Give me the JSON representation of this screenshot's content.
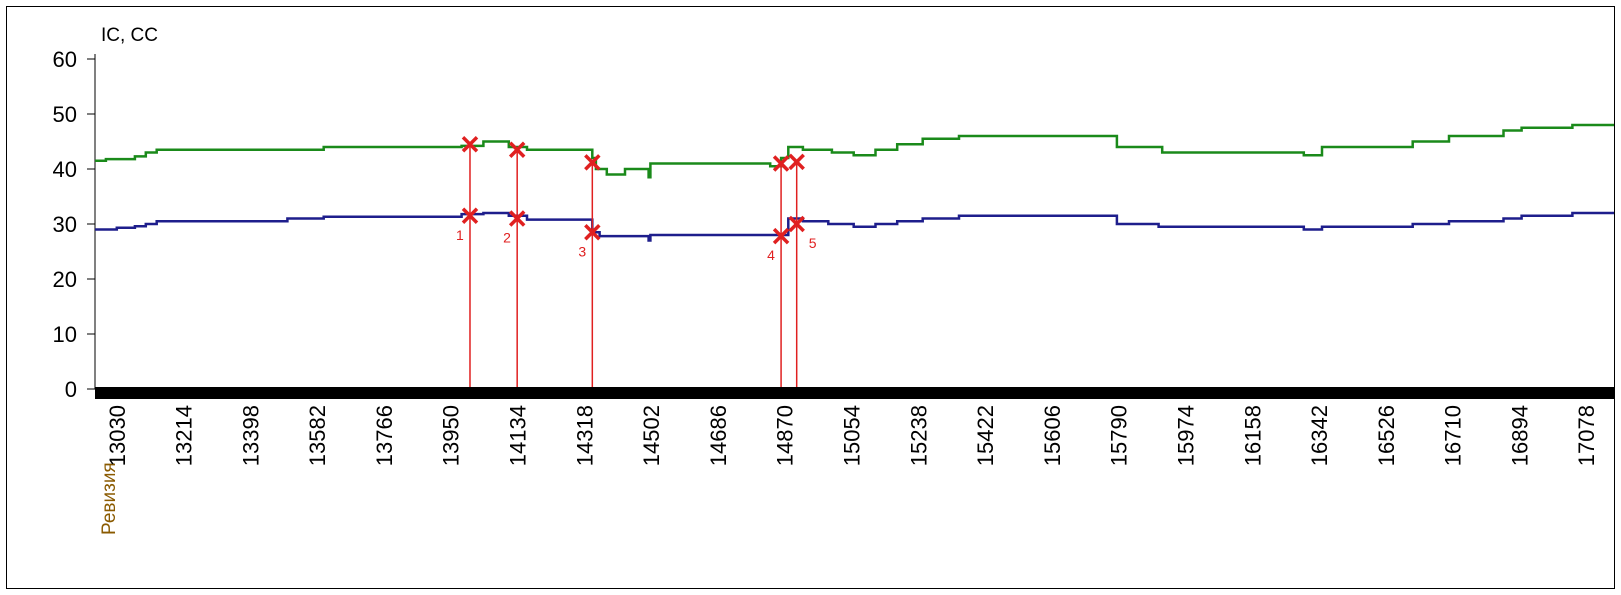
{
  "chart_data": {
    "type": "line",
    "ylabel": "IC, CC",
    "xlabel": "Ревизия",
    "ylim": [
      0,
      60
    ],
    "yticks": [
      "60",
      "50",
      "40",
      "30",
      "20",
      "10",
      "0"
    ],
    "xlim": [
      12970,
      17160
    ],
    "xticks": [
      "13030",
      "13214",
      "13398",
      "13582",
      "13766",
      "13950",
      "14134",
      "14318",
      "14502",
      "14686",
      "14870",
      "15054",
      "15238",
      "15422",
      "15606",
      "15790",
      "15974",
      "16158",
      "16342",
      "16526",
      "16710",
      "16894",
      "17078"
    ],
    "grid": false,
    "legend": "none",
    "colors": {
      "green": "#1a8a1a",
      "blue": "#1e1e8c",
      "marker": "#e02020"
    },
    "series": [
      {
        "color": "#1a8a1a",
        "points": [
          [
            12970,
            41.5
          ],
          [
            13000,
            41.8
          ],
          [
            13030,
            41.8
          ],
          [
            13080,
            42.3
          ],
          [
            13110,
            43.0
          ],
          [
            13140,
            43.5
          ],
          [
            13400,
            43.5
          ],
          [
            13600,
            44.0
          ],
          [
            13980,
            44.2
          ],
          [
            14040,
            45.0
          ],
          [
            14110,
            44.0
          ],
          [
            14160,
            43.5
          ],
          [
            14300,
            43.5
          ],
          [
            14340,
            42.0
          ],
          [
            14350,
            40.0
          ],
          [
            14380,
            39.0
          ],
          [
            14430,
            40.0
          ],
          [
            14490,
            40.0
          ],
          [
            14495,
            38.5
          ],
          [
            14500,
            41.0
          ],
          [
            14600,
            41.0
          ],
          [
            14700,
            41.0
          ],
          [
            14830,
            40.5
          ],
          [
            14860,
            42.0
          ],
          [
            14880,
            44.0
          ],
          [
            14920,
            43.5
          ],
          [
            14990,
            43.5
          ],
          [
            15000,
            43.0
          ],
          [
            15040,
            43.0
          ],
          [
            15060,
            42.5
          ],
          [
            15120,
            43.5
          ],
          [
            15180,
            44.5
          ],
          [
            15250,
            45.5
          ],
          [
            15350,
            46.0
          ],
          [
            15780,
            46.0
          ],
          [
            15785,
            44.0
          ],
          [
            15900,
            44.0
          ],
          [
            15910,
            43.0
          ],
          [
            16300,
            42.5
          ],
          [
            16350,
            44.0
          ],
          [
            16600,
            45.0
          ],
          [
            16700,
            46.0
          ],
          [
            16850,
            47.0
          ],
          [
            16900,
            47.5
          ],
          [
            17040,
            48.0
          ],
          [
            17160,
            48.0
          ]
        ]
      },
      {
        "color": "#1e1e8c",
        "points": [
          [
            12970,
            29.0
          ],
          [
            13030,
            29.3
          ],
          [
            13080,
            29.6
          ],
          [
            13110,
            30.0
          ],
          [
            13140,
            30.5
          ],
          [
            13400,
            30.5
          ],
          [
            13500,
            31.0
          ],
          [
            13600,
            31.3
          ],
          [
            13980,
            31.8
          ],
          [
            14040,
            32.0
          ],
          [
            14110,
            31.5
          ],
          [
            14160,
            30.8
          ],
          [
            14320,
            30.8
          ],
          [
            14340,
            28.5
          ],
          [
            14360,
            27.8
          ],
          [
            14490,
            27.8
          ],
          [
            14495,
            27.0
          ],
          [
            14500,
            28.0
          ],
          [
            14600,
            28.0
          ],
          [
            14700,
            28.0
          ],
          [
            14860,
            28.0
          ],
          [
            14880,
            31.0
          ],
          [
            14920,
            30.5
          ],
          [
            14990,
            30.0
          ],
          [
            15060,
            29.5
          ],
          [
            15120,
            30.0
          ],
          [
            15180,
            30.5
          ],
          [
            15250,
            31.0
          ],
          [
            15350,
            31.5
          ],
          [
            15780,
            31.5
          ],
          [
            15785,
            30.0
          ],
          [
            15900,
            29.5
          ],
          [
            16300,
            29.0
          ],
          [
            16350,
            29.5
          ],
          [
            16600,
            30.0
          ],
          [
            16700,
            30.5
          ],
          [
            16850,
            31.0
          ],
          [
            16900,
            31.5
          ],
          [
            17040,
            32.0
          ],
          [
            17160,
            32.0
          ]
        ]
      }
    ],
    "markers": [
      {
        "label": "1",
        "x": 14003,
        "y_top": 44.5,
        "y_bottom": 31.5
      },
      {
        "label": "2",
        "x": 14133,
        "y_top": 43.5,
        "y_bottom": 31.0
      },
      {
        "label": "3",
        "x": 14340,
        "y_top": 41.2,
        "y_bottom": 28.5
      },
      {
        "label": "4",
        "x": 14860,
        "y_top": 41.0,
        "y_bottom": 27.8
      },
      {
        "label": "5",
        "x": 14903,
        "y_top": 41.3,
        "y_bottom": 30.0
      }
    ]
  }
}
